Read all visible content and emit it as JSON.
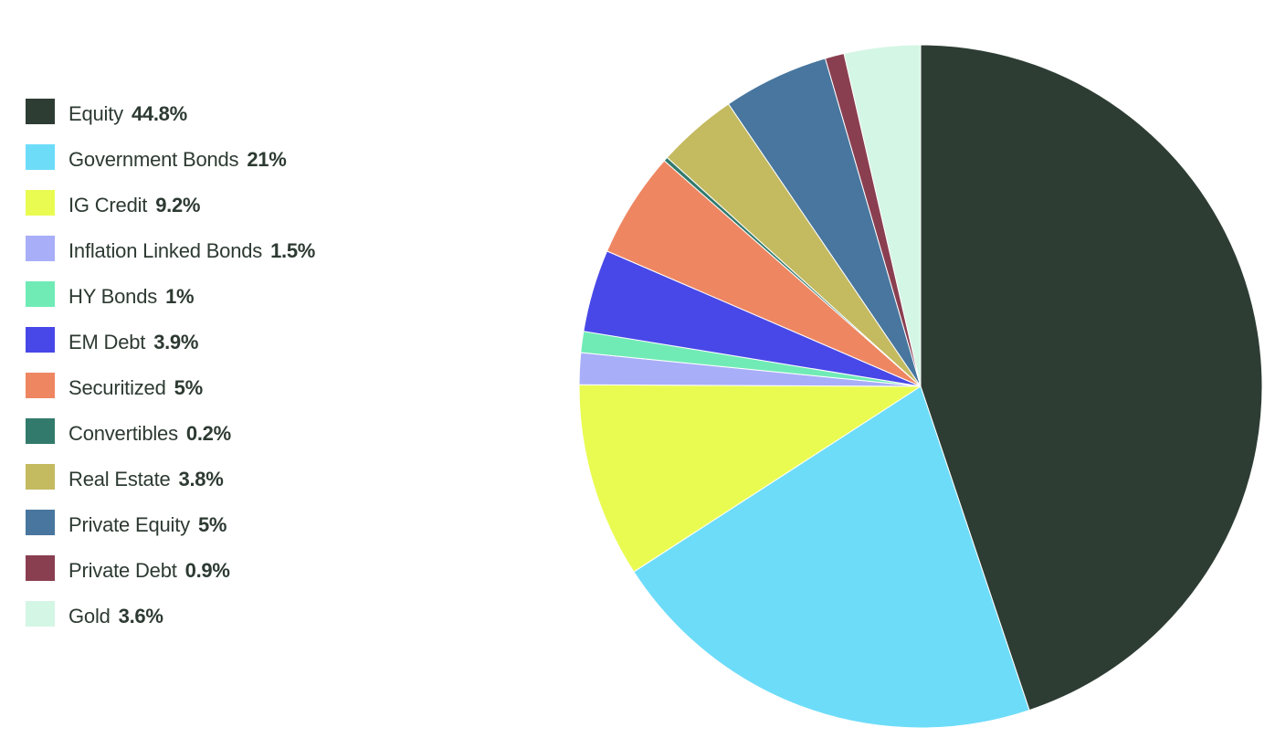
{
  "chart_data": {
    "type": "pie",
    "title": "",
    "legend_placement": "left",
    "slices": [
      {
        "label": "Equity",
        "value": 44.8,
        "value_label": "44.8%",
        "color": "#2e3d34"
      },
      {
        "label": "Government Bonds",
        "value": 21,
        "value_label": "21%",
        "color": "#6ddcf9"
      },
      {
        "label": "IG Credit",
        "value": 9.2,
        "value_label": "9.2%",
        "color": "#e9fb51"
      },
      {
        "label": "Inflation Linked Bonds",
        "value": 1.5,
        "value_label": "1.5%",
        "color": "#a9aef8"
      },
      {
        "label": "HY Bonds",
        "value": 1,
        "value_label": "1%",
        "color": "#70ebb6"
      },
      {
        "label": "EM Debt",
        "value": 3.9,
        "value_label": "3.9%",
        "color": "#4848e8"
      },
      {
        "label": "Securitized",
        "value": 5,
        "value_label": "5%",
        "color": "#ee8662"
      },
      {
        "label": "Convertibles",
        "value": 0.2,
        "value_label": "0.2%",
        "color": "#327a6c"
      },
      {
        "label": "Real Estate",
        "value": 3.8,
        "value_label": "3.8%",
        "color": "#c4ba60"
      },
      {
        "label": "Private Equity",
        "value": 5,
        "value_label": "5%",
        "color": "#48769e"
      },
      {
        "label": "Private Debt",
        "value": 0.9,
        "value_label": "0.9%",
        "color": "#8a3f50"
      },
      {
        "label": "Gold",
        "value": 3.6,
        "value_label": "3.6%",
        "color": "#d4f6e5"
      }
    ]
  }
}
